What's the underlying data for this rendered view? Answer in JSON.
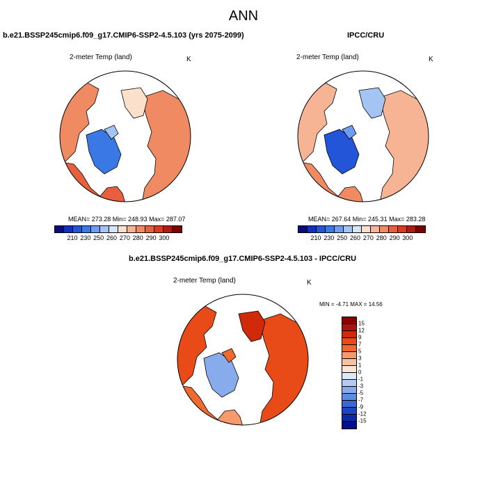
{
  "title": "ANN",
  "panels": [
    {
      "title": "b.e21.BSSP245cmip6.f09_g17.CMIP6-SSP2-4.5.103 (yrs 2075-2099)",
      "variable": "2-meter Temp (land)",
      "units": "K",
      "stats": "MEAN= 273.28  Min= 248.93  Max= 287.07",
      "colorbar": {
        "colors": [
          "#0a0a7a",
          "#1030c0",
          "#2255d8",
          "#3a78e6",
          "#6d9cf0",
          "#a4c4f4",
          "#d6e4f8",
          "#fbe0cc",
          "#f6b494",
          "#ef8a62",
          "#e85f3e",
          "#d93a20",
          "#b21a10",
          "#7d0000"
        ],
        "labels": [
          "210",
          "230",
          "250",
          "260",
          "270",
          "280",
          "290",
          "300"
        ]
      }
    },
    {
      "title": "IPCC/CRU",
      "variable": "2-meter Temp (land)",
      "units": "K",
      "stats": "MEAN= 267.64  Min= 245.31  Max= 283.28",
      "colorbar": {
        "colors": [
          "#0a0a7a",
          "#1030c0",
          "#2255d8",
          "#3a78e6",
          "#6d9cf0",
          "#a4c4f4",
          "#d6e4f8",
          "#fbe0cc",
          "#f6b494",
          "#ef8a62",
          "#e85f3e",
          "#d93a20",
          "#b21a10",
          "#7d0000"
        ],
        "labels": [
          "210",
          "230",
          "250",
          "260",
          "270",
          "280",
          "290",
          "300"
        ]
      }
    },
    {
      "title": "b.e21.BSSP245cmip6.f09_g17.CMIP6-SSP2-4.5.103 - IPCC/CRU",
      "variable": "2-meter Temp (land)",
      "units": "K",
      "stats": "MIN = -4.71 MAX = 14.56",
      "colorbar": {
        "colors": [
          "#8b0000",
          "#b01212",
          "#d02a0a",
          "#e84a18",
          "#f06a30",
          "#f49a6c",
          "#f8c2a2",
          "#fbe4d4",
          "#dbe8f8",
          "#b2cbf2",
          "#88aceb",
          "#5f8ae2",
          "#3a67d6",
          "#1c44c4",
          "#0a2aaa",
          "#00108a"
        ],
        "labels": [
          "15",
          "12",
          "9",
          "7",
          "5",
          "3",
          "1",
          "0",
          "-1",
          "-3",
          "-5",
          "-7",
          "-9",
          "-12",
          "-15"
        ]
      }
    }
  ]
}
